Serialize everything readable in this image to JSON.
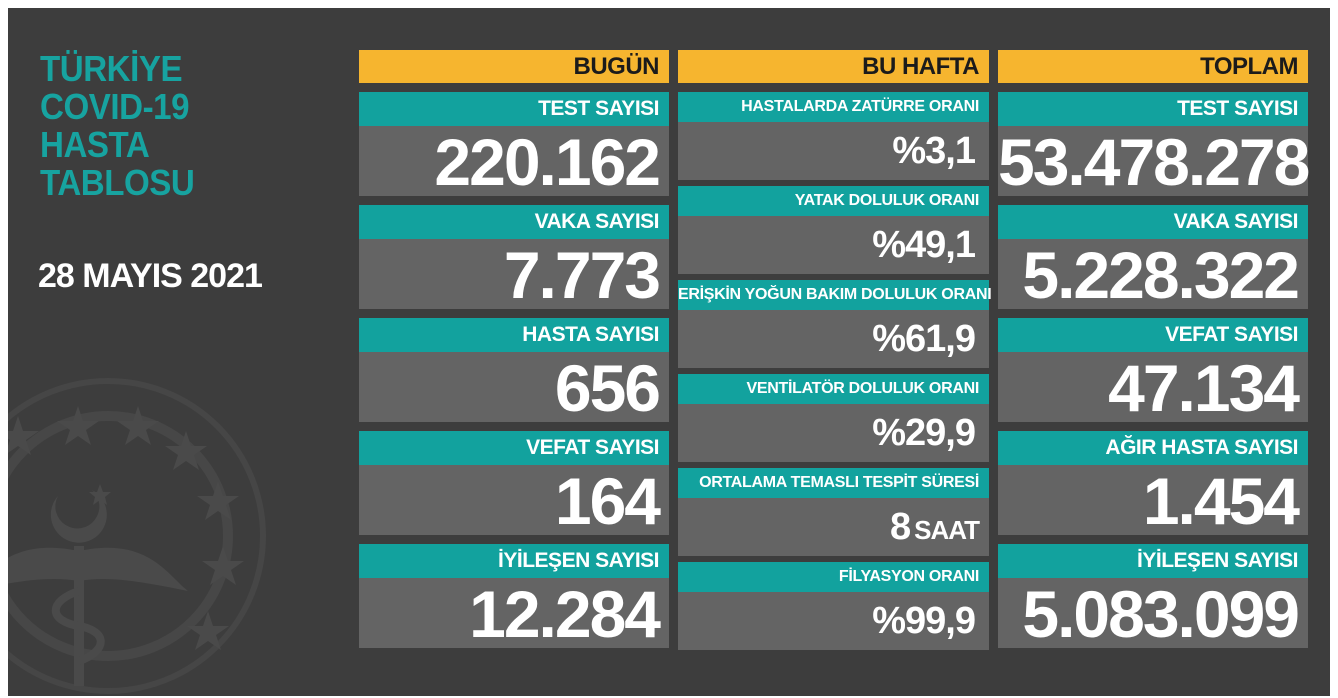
{
  "title": {
    "line1": "TÜRKİYE",
    "line2": "COVID-19",
    "line3": "HASTA",
    "line4": "TABLOSU"
  },
  "date": "28 MAYIS 2021",
  "colors": {
    "background": "#3d3d3d",
    "header": "#f6b52f",
    "label": "#12a29e",
    "value_box": "#646464",
    "title": "#17a3a0"
  },
  "emblem_icon": "ministry-of-health-emblem-icon",
  "today": {
    "header": "BUGÜN",
    "cards": [
      {
        "label": "TEST SAYISI",
        "value": "220.162"
      },
      {
        "label": "VAKA SAYISI",
        "value": "7.773"
      },
      {
        "label": "HASTA SAYISI",
        "value": "656"
      },
      {
        "label": "VEFAT SAYISI",
        "value": "164"
      },
      {
        "label": "İYİLEŞEN SAYISI",
        "value": "12.284"
      }
    ]
  },
  "week": {
    "header": "BU HAFTA",
    "cards": [
      {
        "label": "HASTALARDA ZATÜRRE ORANI",
        "value": "%3,1",
        "unit": ""
      },
      {
        "label": "YATAK DOLULUK ORANI",
        "value": "%49,1",
        "unit": ""
      },
      {
        "label": "ERİŞKİN YOĞUN BAKIM DOLULUK ORANI",
        "value": "%61,9",
        "unit": ""
      },
      {
        "label": "VENTİLATÖR DOLULUK ORANI",
        "value": "%29,9",
        "unit": ""
      },
      {
        "label": "ORTALAMA TEMASLI TESPİT SÜRESİ",
        "value": "8",
        "unit": "SAAT"
      },
      {
        "label": "FİLYASYON ORANI",
        "value": "%99,9",
        "unit": ""
      }
    ]
  },
  "total": {
    "header": "TOPLAM",
    "cards": [
      {
        "label": "TEST SAYISI",
        "value": "53.478.278"
      },
      {
        "label": "VAKA SAYISI",
        "value": "5.228.322"
      },
      {
        "label": "VEFAT SAYISI",
        "value": "47.134"
      },
      {
        "label": "AĞIR HASTA SAYISI",
        "value": "1.454"
      },
      {
        "label": "İYİLEŞEN SAYISI",
        "value": "5.083.099"
      }
    ]
  }
}
